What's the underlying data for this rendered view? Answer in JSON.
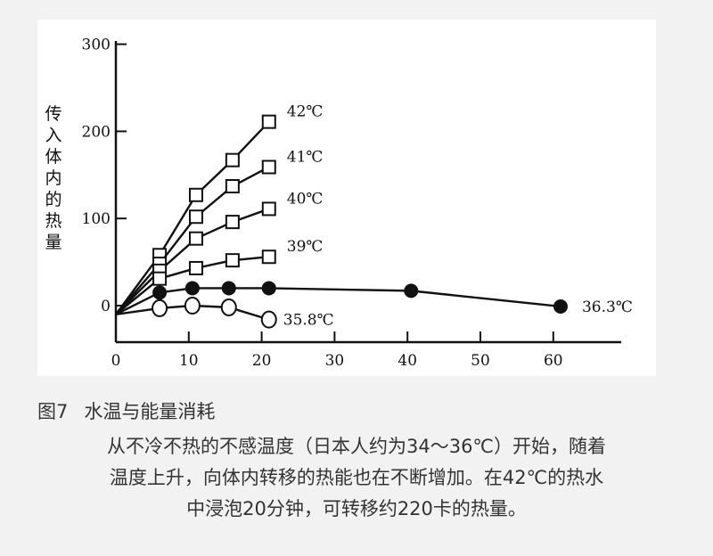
{
  "chart_data": {
    "type": "line",
    "ylabel": "传入体内的热量",
    "xlim": [
      0,
      72
    ],
    "ylim": [
      -30,
      320
    ],
    "xticks": [
      0,
      10,
      20,
      30,
      40,
      50,
      60
    ],
    "yticks": [
      0,
      100,
      200,
      300
    ],
    "grid": false,
    "series": [
      {
        "name": "42℃",
        "marker": "square",
        "x": [
          0,
          6,
          11,
          16,
          21
        ],
        "y": [
          -10,
          58,
          127,
          167,
          211
        ]
      },
      {
        "name": "41℃",
        "marker": "square",
        "x": [
          0,
          6,
          11,
          16,
          21
        ],
        "y": [
          -10,
          48,
          102,
          137,
          159
        ]
      },
      {
        "name": "40℃",
        "marker": "square",
        "x": [
          0,
          6,
          11,
          16,
          21
        ],
        "y": [
          -10,
          40,
          77,
          96,
          111
        ]
      },
      {
        "name": "39℃",
        "marker": "square",
        "x": [
          0,
          6,
          11,
          16,
          21
        ],
        "y": [
          -10,
          31,
          43,
          52,
          56
        ]
      },
      {
        "name": "36.3℃",
        "marker": "filled-circle",
        "x": [
          0,
          6,
          10.5,
          15.5,
          21,
          40.5,
          61
        ],
        "y": [
          -10,
          15,
          20,
          20,
          20,
          17,
          -1
        ]
      },
      {
        "name": "35.8℃",
        "marker": "open-circle",
        "x": [
          0,
          6,
          10.5,
          15.5,
          21
        ],
        "y": [
          -10,
          -3,
          0,
          -2,
          -16
        ]
      }
    ]
  },
  "caption": {
    "number": "图7",
    "title": "水温与能量消耗"
  },
  "description": {
    "lines": [
      "从不冷不热的不感温度（日本人约为34～36℃）开始，随着",
      "温度上升，向体内转移的热能也在不断增加。在42℃的热水",
      "中浸泡20分钟，可转移约220卡的热量。"
    ]
  }
}
